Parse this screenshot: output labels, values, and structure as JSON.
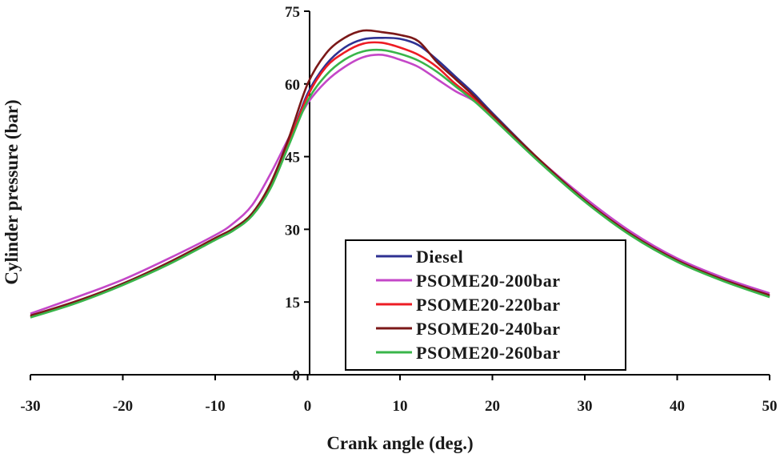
{
  "chart_data": {
    "type": "line",
    "title": "",
    "xlabel": "Crank angle (deg.)",
    "ylabel": "Cylinder pressure (bar)",
    "xlim": [
      -30,
      50
    ],
    "ylim": [
      0,
      75
    ],
    "xticks": [
      -30,
      -20,
      -10,
      0,
      10,
      20,
      30,
      40,
      50
    ],
    "yticks": [
      0,
      15,
      30,
      45,
      60,
      75
    ],
    "xtick_labels": [
      "-30",
      "-20",
      "-10",
      "0",
      "10",
      "20",
      "30",
      "40",
      "50"
    ],
    "ytick_labels": [
      "0",
      "15",
      "30",
      "45",
      "60",
      "75"
    ],
    "legend_position": "bottom-center",
    "series": [
      {
        "name": "Diesel",
        "color": "#2e3192",
        "points": [
          [
            -30,
            12
          ],
          [
            -25,
            15
          ],
          [
            -20,
            18.8
          ],
          [
            -15,
            23
          ],
          [
            -10,
            28
          ],
          [
            -8,
            30
          ],
          [
            -6,
            33
          ],
          [
            -4,
            39
          ],
          [
            -2,
            48
          ],
          [
            0,
            58
          ],
          [
            2,
            64
          ],
          [
            4,
            67.5
          ],
          [
            6,
            69.2
          ],
          [
            8,
            69.5
          ],
          [
            10,
            69.3
          ],
          [
            12,
            68
          ],
          [
            14,
            65
          ],
          [
            16,
            61.5
          ],
          [
            18,
            58
          ],
          [
            20,
            54
          ],
          [
            25,
            44.5
          ],
          [
            30,
            36
          ],
          [
            35,
            29
          ],
          [
            40,
            23.5
          ],
          [
            45,
            19.5
          ],
          [
            50,
            16.2
          ]
        ]
      },
      {
        "name": "PSOME20-200bar",
        "color": "#c447c8",
        "points": [
          [
            -30,
            12.6
          ],
          [
            -25,
            16
          ],
          [
            -20,
            19.6
          ],
          [
            -15,
            24
          ],
          [
            -10,
            28.8
          ],
          [
            -8,
            31.3
          ],
          [
            -6,
            35
          ],
          [
            -4,
            41.5
          ],
          [
            -2,
            49
          ],
          [
            0,
            56
          ],
          [
            2,
            60.5
          ],
          [
            4,
            63.5
          ],
          [
            6,
            65.5
          ],
          [
            8,
            66
          ],
          [
            10,
            65
          ],
          [
            12,
            63.5
          ],
          [
            14,
            61
          ],
          [
            16,
            58.5
          ],
          [
            18,
            56.5
          ],
          [
            20,
            53.5
          ],
          [
            25,
            44.5
          ],
          [
            30,
            36.5
          ],
          [
            35,
            29.5
          ],
          [
            40,
            24
          ],
          [
            45,
            20
          ],
          [
            50,
            16.8
          ]
        ]
      },
      {
        "name": "PSOME20-220bar",
        "color": "#ed1c24",
        "points": [
          [
            -30,
            12
          ],
          [
            -25,
            15
          ],
          [
            -20,
            18.6
          ],
          [
            -15,
            23
          ],
          [
            -10,
            28
          ],
          [
            -8,
            30
          ],
          [
            -6,
            33
          ],
          [
            -4,
            39
          ],
          [
            -2,
            48
          ],
          [
            0,
            57.5
          ],
          [
            2,
            63.5
          ],
          [
            4,
            66.5
          ],
          [
            6,
            68.3
          ],
          [
            8,
            68.5
          ],
          [
            10,
            67.5
          ],
          [
            12,
            66
          ],
          [
            14,
            63.5
          ],
          [
            16,
            60
          ],
          [
            18,
            57
          ],
          [
            20,
            53.5
          ],
          [
            25,
            44.5
          ],
          [
            30,
            36
          ],
          [
            35,
            29
          ],
          [
            40,
            23.5
          ],
          [
            45,
            19.5
          ],
          [
            50,
            16.3
          ]
        ]
      },
      {
        "name": "PSOME20-240bar",
        "color": "#7b1818",
        "points": [
          [
            -30,
            12.2
          ],
          [
            -25,
            15.2
          ],
          [
            -20,
            18.8
          ],
          [
            -15,
            23.2
          ],
          [
            -10,
            28.2
          ],
          [
            -8,
            30.2
          ],
          [
            -6,
            33.3
          ],
          [
            -4,
            39.5
          ],
          [
            -2,
            49
          ],
          [
            0,
            60
          ],
          [
            2,
            66.3
          ],
          [
            4,
            69.5
          ],
          [
            6,
            71
          ],
          [
            8,
            70.7
          ],
          [
            10,
            70.1
          ],
          [
            12,
            68.8
          ],
          [
            14,
            64.5
          ],
          [
            16,
            61
          ],
          [
            18,
            57.5
          ],
          [
            20,
            53.7
          ],
          [
            25,
            44.5
          ],
          [
            30,
            36
          ],
          [
            35,
            29
          ],
          [
            40,
            23.6
          ],
          [
            45,
            19.6
          ],
          [
            50,
            16.4
          ]
        ]
      },
      {
        "name": "PSOME20-260bar",
        "color": "#39b54a",
        "points": [
          [
            -30,
            11.8
          ],
          [
            -25,
            14.8
          ],
          [
            -20,
            18.5
          ],
          [
            -15,
            22.8
          ],
          [
            -10,
            27.8
          ],
          [
            -8,
            29.8
          ],
          [
            -6,
            32.8
          ],
          [
            -4,
            38.5
          ],
          [
            -2,
            47.5
          ],
          [
            0,
            56.5
          ],
          [
            2,
            61.8
          ],
          [
            4,
            65
          ],
          [
            6,
            66.7
          ],
          [
            8,
            67
          ],
          [
            10,
            66.2
          ],
          [
            12,
            64.8
          ],
          [
            14,
            62.5
          ],
          [
            16,
            59.5
          ],
          [
            18,
            56.5
          ],
          [
            20,
            53
          ],
          [
            25,
            44
          ],
          [
            30,
            35.7
          ],
          [
            35,
            28.7
          ],
          [
            40,
            23.3
          ],
          [
            45,
            19.3
          ],
          [
            50,
            16
          ]
        ]
      }
    ]
  }
}
